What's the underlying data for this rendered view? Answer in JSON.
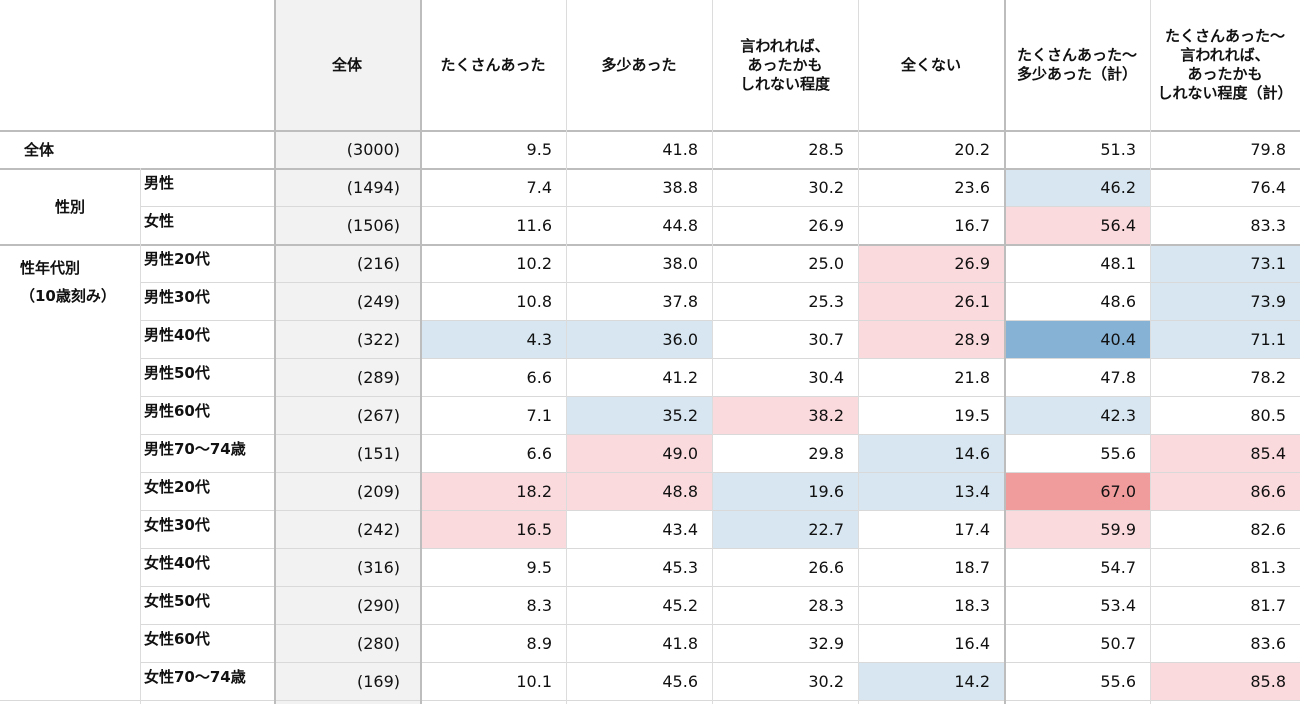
{
  "chart_data": {
    "type": "table",
    "columns": [
      "全体",
      "たくさんあった",
      "多少あった",
      "言われれば、\nあったかも\nしれない程度",
      "全くない",
      "たくさんあった～\n多少あった（計）",
      "たくさんあった～\n言われれば、\nあったかも\nしれない程度（計）"
    ],
    "rows": [
      {
        "group": "全体",
        "label": "",
        "n": "(3000)",
        "values": [
          "9.5",
          "41.8",
          "28.5",
          "20.2",
          "51.3",
          "79.8"
        ],
        "shading": [
          "",
          "",
          "",
          "",
          "",
          ""
        ]
      },
      {
        "group": "性別",
        "label": "男性",
        "n": "(1494)",
        "values": [
          "7.4",
          "38.8",
          "30.2",
          "23.6",
          "46.2",
          "76.4"
        ],
        "shading": [
          "",
          "",
          "",
          "",
          "lightblue",
          ""
        ]
      },
      {
        "group": "",
        "label": "女性",
        "n": "(1506)",
        "values": [
          "11.6",
          "44.8",
          "26.9",
          "16.7",
          "56.4",
          "83.3"
        ],
        "shading": [
          "",
          "",
          "",
          "",
          "lightpink",
          ""
        ]
      },
      {
        "group": "性年代別\n（10歳刻み）",
        "label": "男性20代",
        "n": "(216)",
        "values": [
          "10.2",
          "38.0",
          "25.0",
          "26.9",
          "48.1",
          "73.1"
        ],
        "shading": [
          "",
          "",
          "",
          "lightpink",
          "",
          "lightblue"
        ]
      },
      {
        "group": "",
        "label": "男性30代",
        "n": "(249)",
        "values": [
          "10.8",
          "37.8",
          "25.3",
          "26.1",
          "48.6",
          "73.9"
        ],
        "shading": [
          "",
          "",
          "",
          "lightpink",
          "",
          "lightblue"
        ]
      },
      {
        "group": "",
        "label": "男性40代",
        "n": "(322)",
        "values": [
          "4.3",
          "36.0",
          "30.7",
          "28.9",
          "40.4",
          "71.1"
        ],
        "shading": [
          "lightblue",
          "lightblue",
          "",
          "lightpink",
          "darkblue",
          "lightblue"
        ]
      },
      {
        "group": "",
        "label": "男性50代",
        "n": "(289)",
        "values": [
          "6.6",
          "41.2",
          "30.4",
          "21.8",
          "47.8",
          "78.2"
        ],
        "shading": [
          "",
          "",
          "",
          "",
          "",
          ""
        ]
      },
      {
        "group": "",
        "label": "男性60代",
        "n": "(267)",
        "values": [
          "7.1",
          "35.2",
          "38.2",
          "19.5",
          "42.3",
          "80.5"
        ],
        "shading": [
          "",
          "lightblue",
          "lightpink",
          "",
          "lightblue",
          ""
        ]
      },
      {
        "group": "",
        "label": "男性70～74歳",
        "n": "(151)",
        "values": [
          "6.6",
          "49.0",
          "29.8",
          "14.6",
          "55.6",
          "85.4"
        ],
        "shading": [
          "",
          "lightpink",
          "",
          "lightblue",
          "",
          "lightpink"
        ]
      },
      {
        "group": "",
        "label": "女性20代",
        "n": "(209)",
        "values": [
          "18.2",
          "48.8",
          "19.6",
          "13.4",
          "67.0",
          "86.6"
        ],
        "shading": [
          "lightpink",
          "lightpink",
          "lightblue",
          "lightblue",
          "darkpink",
          "lightpink"
        ]
      },
      {
        "group": "",
        "label": "女性30代",
        "n": "(242)",
        "values": [
          "16.5",
          "43.4",
          "22.7",
          "17.4",
          "59.9",
          "82.6"
        ],
        "shading": [
          "lightpink",
          "",
          "lightblue",
          "",
          "lightpink",
          ""
        ]
      },
      {
        "group": "",
        "label": "女性40代",
        "n": "(316)",
        "values": [
          "9.5",
          "45.3",
          "26.6",
          "18.7",
          "54.7",
          "81.3"
        ],
        "shading": [
          "",
          "",
          "",
          "",
          "",
          ""
        ]
      },
      {
        "group": "",
        "label": "女性50代",
        "n": "(290)",
        "values": [
          "8.3",
          "45.2",
          "28.3",
          "18.3",
          "53.4",
          "81.7"
        ],
        "shading": [
          "",
          "",
          "",
          "",
          "",
          ""
        ]
      },
      {
        "group": "",
        "label": "女性60代",
        "n": "(280)",
        "values": [
          "8.9",
          "41.8",
          "32.9",
          "16.4",
          "50.7",
          "83.6"
        ],
        "shading": [
          "",
          "",
          "",
          "",
          "",
          ""
        ]
      },
      {
        "group": "",
        "label": "女性70～74歳",
        "n": "(169)",
        "values": [
          "10.1",
          "45.6",
          "30.2",
          "14.2",
          "55.6",
          "85.8"
        ],
        "shading": [
          "",
          "",
          "",
          "lightblue",
          "",
          "lightpink"
        ]
      }
    ]
  },
  "colors": {
    "lightblue": "#d7e6f0",
    "darkblue": "#86b2d6",
    "lightpink": "#fadadd",
    "darkpink": "#f09b9c",
    "total_col": "#f2f2f2"
  }
}
